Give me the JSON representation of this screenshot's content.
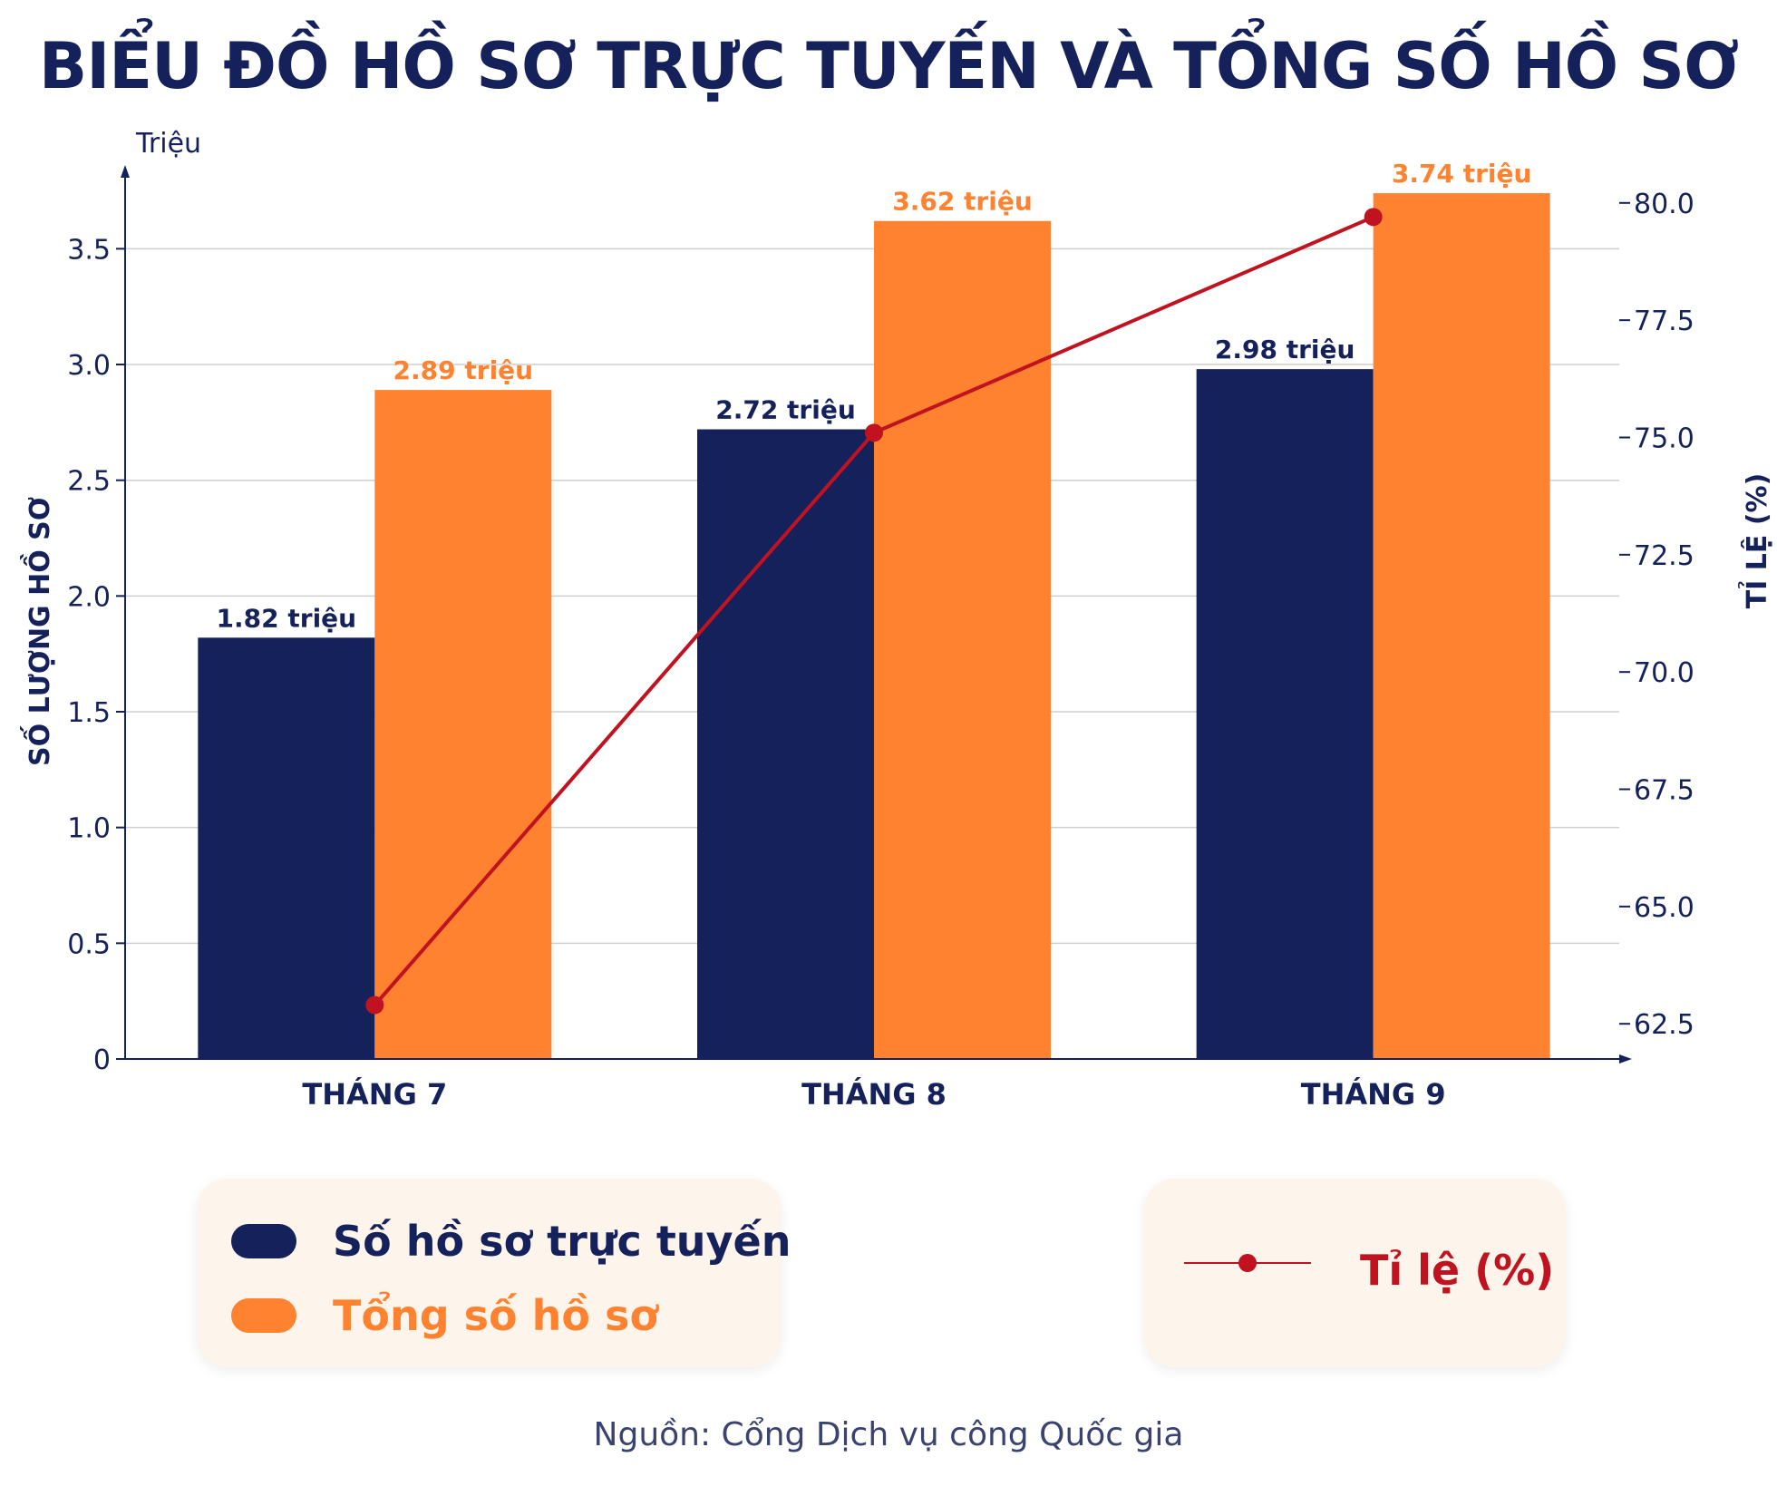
{
  "chart_data": {
    "type": "bar",
    "title": "BIỂU ĐỒ HỒ SƠ TRỰC TUYẾN VÀ TỔNG SỐ HỒ SƠ",
    "categories": [
      "THÁNG 7",
      "THÁNG 8",
      "THÁNG 9"
    ],
    "y_unit": "Triệu",
    "ylabel": "SỐ LƯỢNG HỒ SƠ",
    "ylim": [
      0,
      3.85
    ],
    "yticks": [
      "0",
      "0.5",
      "1.0",
      "1.5",
      "2.0",
      "2.5",
      "3.0",
      "3.5"
    ],
    "y2label": "TỈ LỆ (%)",
    "y2lim": [
      61.75,
      80.75
    ],
    "y2ticks": [
      "62.5",
      "65.0",
      "67.5",
      "70.0",
      "72.5",
      "75.0",
      "77.5",
      "80.0"
    ],
    "grid": true,
    "series": [
      {
        "name": "Số hồ sơ trực tuyến",
        "values": [
          1.82,
          2.72,
          2.98
        ],
        "labels": [
          "1.82 triệu",
          "2.72 triệu",
          "2.98 triệu"
        ],
        "color": "#14215a"
      },
      {
        "name": "Tổng số hồ sơ",
        "values": [
          2.89,
          3.62,
          3.74
        ],
        "labels": [
          "2.89 triệu",
          "3.62 triệu",
          "3.74 triệu"
        ],
        "color": "#fe8230"
      }
    ],
    "line_series": {
      "name": "Tỉ lệ (%)",
      "values": [
        62.9,
        75.1,
        79.7
      ],
      "color": "#c1121f"
    }
  },
  "source": "Nguồn: Cổng Dịch vụ công Quốc gia"
}
